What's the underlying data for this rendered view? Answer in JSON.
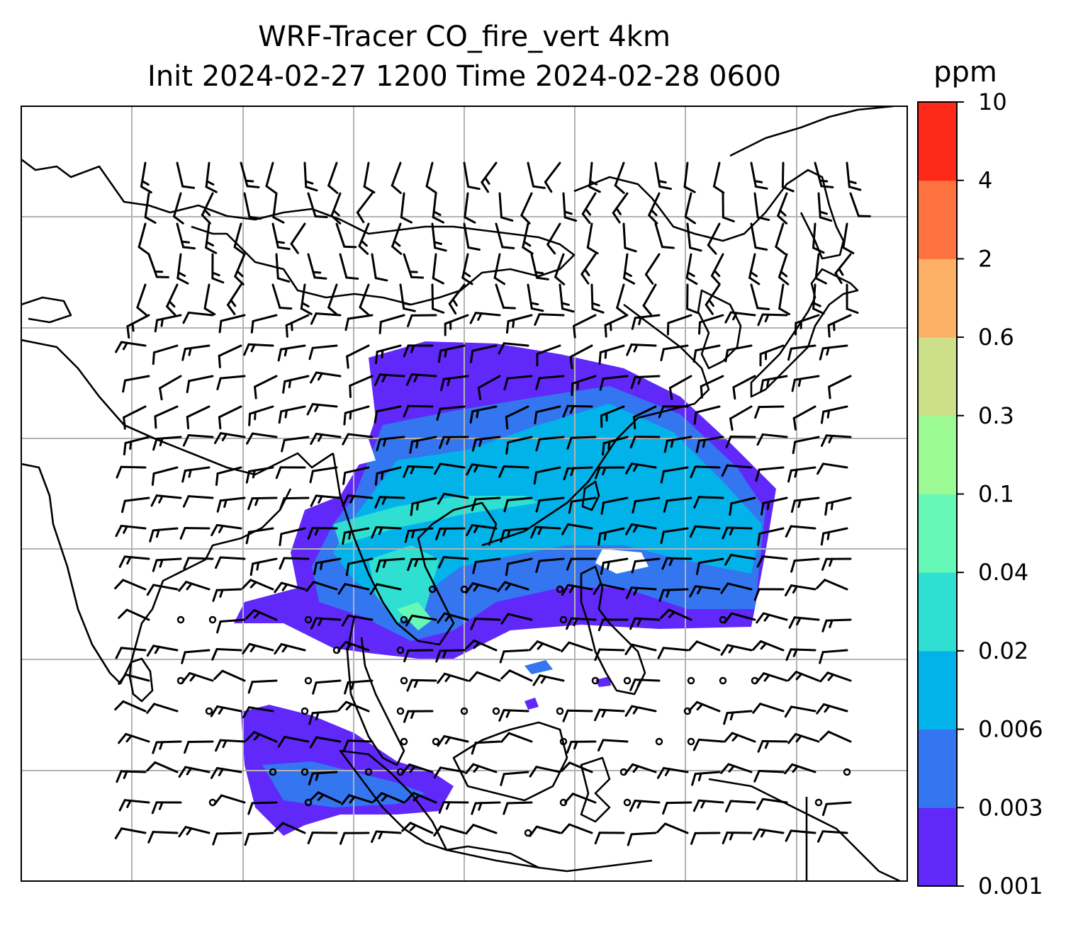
{
  "title": {
    "line1": "WRF-Tracer CO_fire_vert 4km",
    "line2": "Init 2024-02-27 1200 Time 2024-02-28 0600"
  },
  "colorbar": {
    "unit_label": "ppm",
    "levels": [
      "0.001",
      "0.003",
      "0.006",
      "0.02",
      "0.04",
      "0.1",
      "0.3",
      "0.6",
      "2",
      "4",
      "10"
    ],
    "colors": [
      "#6128fa",
      "#3475f0",
      "#02b3e9",
      "#2fdfd2",
      "#65f8b7",
      "#9cfa94",
      "#cddf88",
      "#fdb166",
      "#fe7240",
      "#fe2918"
    ]
  },
  "map": {
    "gridline_color": "#b3b3b3",
    "coastline_color": "#000000",
    "wind_barb_color": "#000000"
  }
}
